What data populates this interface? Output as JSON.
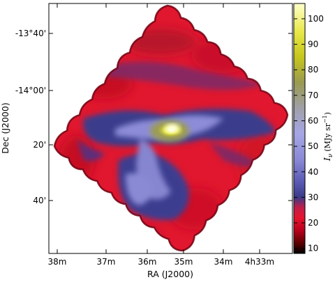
{
  "chart_data": {
    "type": "heatmap",
    "title": "",
    "xlabel": "RA (J2000)",
    "ylabel": "Dec (J2000)",
    "x_ticks": [
      "38m",
      "37m",
      "36m",
      "35m",
      "34m",
      "4h33m"
    ],
    "y_ticks": [
      "-13°40'",
      "-14°00'",
      "20'",
      "40'"
    ],
    "colorbar": {
      "label": "I_ν (MJy sr⁻¹)",
      "label_parts": {
        "symbol": "I",
        "subscript": "ν",
        "units": "(MJy sr",
        "exponent": "−1",
        "close": ")"
      },
      "ticks": [
        "10",
        "20",
        "30",
        "40",
        "50",
        "60",
        "70",
        "80",
        "90",
        "100"
      ],
      "tick_values": [
        10,
        20,
        30,
        40,
        50,
        60,
        70,
        80,
        90,
        100
      ],
      "range": [
        8,
        106
      ],
      "colormap": [
        {
          "value": 8,
          "color": "#000000"
        },
        {
          "value": 12,
          "color": "#5a0000"
        },
        {
          "value": 17,
          "color": "#b8001c"
        },
        {
          "value": 22,
          "color": "#e6142d"
        },
        {
          "value": 26,
          "color": "#c11e4a"
        },
        {
          "value": 30,
          "color": "#3a3a88"
        },
        {
          "value": 36,
          "color": "#5a5ab4"
        },
        {
          "value": 45,
          "color": "#8a8ad6"
        },
        {
          "value": 55,
          "color": "#a6a6e6"
        },
        {
          "value": 65,
          "color": "#a0a0a8"
        },
        {
          "value": 75,
          "color": "#9a9a50"
        },
        {
          "value": 85,
          "color": "#c6c61c"
        },
        {
          "value": 95,
          "color": "#e8e84a"
        },
        {
          "value": 106,
          "color": "#ffffcc"
        }
      ]
    },
    "map_features": {
      "background_level": 20,
      "map_shape": "tilted square mosaic with scalloped edges",
      "peak_value": 105,
      "peak_region": "bright yellow-white knot near RA 35m, Dec -14°20'",
      "filament_levels": [
        32,
        40,
        55
      ]
    }
  }
}
